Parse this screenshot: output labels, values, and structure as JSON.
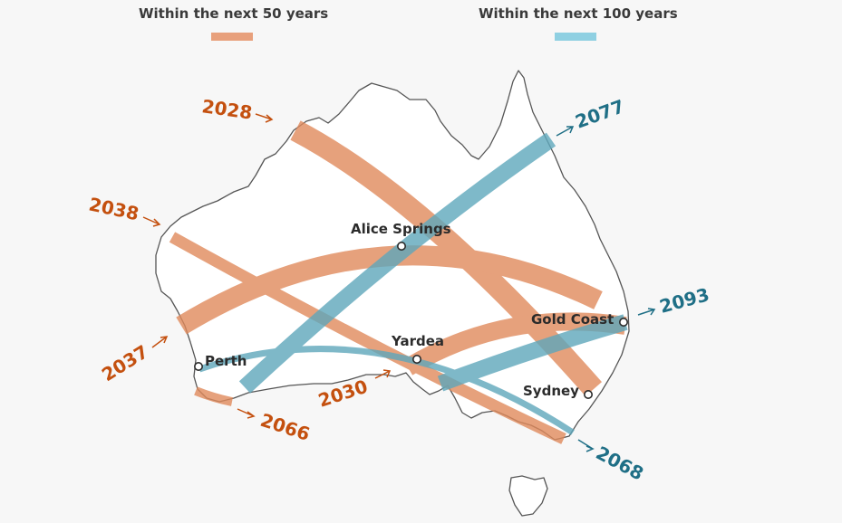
{
  "legend": {
    "fifty": {
      "label": "Within the next 50 years",
      "color": "#e8a07c"
    },
    "hundred": {
      "label": "Within the next 100 years",
      "color": "#8fd0e2"
    }
  },
  "colors": {
    "orange_band": "#e08a5c",
    "blue_band": "#5ea7bb",
    "orange_text": "#c4500f",
    "blue_text": "#1f6f86",
    "land": "#ffffff",
    "coast": "#555555"
  },
  "cities": {
    "alice_springs": "Alice Springs",
    "yardea": "Yardea",
    "perth": "Perth",
    "gold_coast": "Gold Coast",
    "sydney": "Sydney"
  },
  "eclipses": {
    "y2028": "2028",
    "y2038": "2038",
    "y2037": "2037",
    "y2030": "2030",
    "y2066": "2066",
    "y2077": "2077",
    "y2093": "2093",
    "y2068": "2068"
  }
}
